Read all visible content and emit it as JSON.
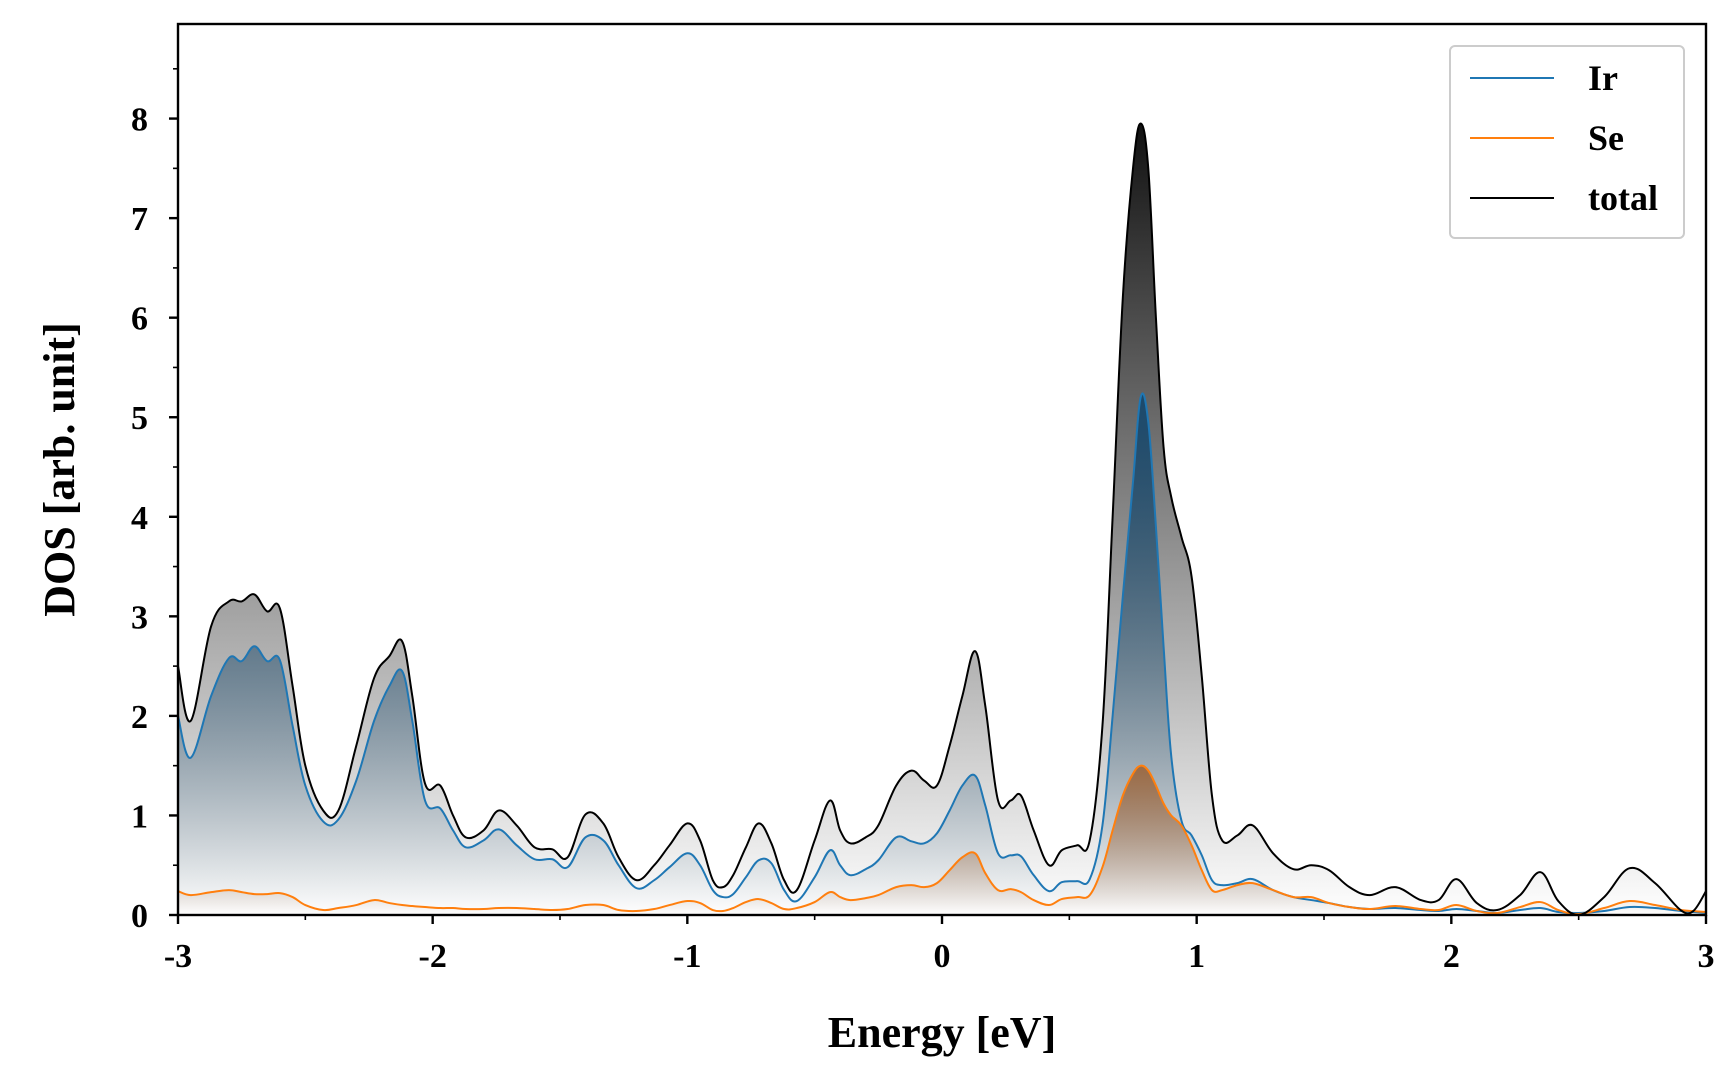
{
  "chart_data": {
    "type": "area",
    "xlabel": "Energy [eV]",
    "ylabel": "DOS [arb. unit]",
    "xlim": [
      -3,
      3
    ],
    "ylim": [
      0,
      8.95
    ],
    "x_ticks": [
      -3,
      -2,
      -1,
      0,
      1,
      2,
      3
    ],
    "x_tick_labels": [
      "-3",
      "-2",
      "-1",
      "0",
      "1",
      "2",
      "3"
    ],
    "y_ticks": [
      0,
      1,
      2,
      3,
      4,
      5,
      6,
      7,
      8
    ],
    "y_tick_labels": [
      "0",
      "1",
      "2",
      "3",
      "4",
      "5",
      "6",
      "7",
      "8"
    ],
    "grid": false,
    "legend_position": "top-right",
    "x": [
      -3.0,
      -2.95,
      -2.87,
      -2.8,
      -2.75,
      -2.7,
      -2.65,
      -2.6,
      -2.55,
      -2.5,
      -2.43,
      -2.37,
      -2.3,
      -2.23,
      -2.17,
      -2.12,
      -2.08,
      -2.03,
      -1.97,
      -1.92,
      -1.87,
      -1.8,
      -1.74,
      -1.67,
      -1.6,
      -1.53,
      -1.47,
      -1.4,
      -1.33,
      -1.27,
      -1.2,
      -1.13,
      -1.07,
      -1.0,
      -0.95,
      -0.9,
      -0.86,
      -0.82,
      -0.77,
      -0.72,
      -0.67,
      -0.62,
      -0.57,
      -0.5,
      -0.44,
      -0.4,
      -0.36,
      -0.3,
      -0.25,
      -0.18,
      -0.12,
      -0.07,
      -0.02,
      0.03,
      0.08,
      0.13,
      0.17,
      0.22,
      0.27,
      0.31,
      0.36,
      0.42,
      0.47,
      0.53,
      0.58,
      0.63,
      0.67,
      0.71,
      0.75,
      0.78,
      0.81,
      0.84,
      0.87,
      0.9,
      0.94,
      0.98,
      1.02,
      1.06,
      1.1,
      1.16,
      1.22,
      1.3,
      1.38,
      1.45,
      1.52,
      1.6,
      1.68,
      1.78,
      1.88,
      1.95,
      2.02,
      2.1,
      2.18,
      2.27,
      2.35,
      2.42,
      2.5,
      2.6,
      2.7,
      2.8,
      2.9,
      2.95,
      3.0
    ],
    "series": [
      {
        "name": "Ir",
        "color": "#1f77b4",
        "fill": "#1c4a6c",
        "values": [
          2.0,
          1.58,
          2.2,
          2.58,
          2.55,
          2.7,
          2.55,
          2.56,
          1.9,
          1.3,
          0.94,
          0.96,
          1.35,
          1.95,
          2.3,
          2.45,
          1.95,
          1.15,
          1.07,
          0.85,
          0.68,
          0.75,
          0.86,
          0.7,
          0.56,
          0.56,
          0.48,
          0.78,
          0.75,
          0.5,
          0.27,
          0.35,
          0.48,
          0.62,
          0.5,
          0.25,
          0.18,
          0.21,
          0.38,
          0.55,
          0.52,
          0.25,
          0.14,
          0.38,
          0.65,
          0.5,
          0.4,
          0.46,
          0.55,
          0.78,
          0.74,
          0.72,
          0.82,
          1.05,
          1.3,
          1.4,
          1.1,
          0.62,
          0.6,
          0.59,
          0.4,
          0.24,
          0.33,
          0.34,
          0.36,
          0.9,
          2.0,
          3.2,
          4.35,
          5.2,
          4.95,
          3.9,
          2.7,
          1.6,
          0.95,
          0.8,
          0.6,
          0.35,
          0.3,
          0.32,
          0.36,
          0.25,
          0.18,
          0.15,
          0.12,
          0.08,
          0.06,
          0.07,
          0.05,
          0.04,
          0.06,
          0.04,
          0.02,
          0.05,
          0.07,
          0.03,
          0.02,
          0.04,
          0.08,
          0.07,
          0.04,
          0.03,
          0.02
        ]
      },
      {
        "name": "Se",
        "color": "#ff7f0e",
        "fill": "#9c6b45",
        "values": [
          0.24,
          0.2,
          0.23,
          0.25,
          0.23,
          0.21,
          0.21,
          0.22,
          0.18,
          0.1,
          0.05,
          0.07,
          0.1,
          0.15,
          0.12,
          0.1,
          0.09,
          0.08,
          0.07,
          0.07,
          0.06,
          0.06,
          0.07,
          0.07,
          0.06,
          0.05,
          0.06,
          0.1,
          0.1,
          0.05,
          0.04,
          0.06,
          0.1,
          0.14,
          0.12,
          0.05,
          0.04,
          0.07,
          0.13,
          0.16,
          0.12,
          0.06,
          0.07,
          0.13,
          0.23,
          0.18,
          0.15,
          0.17,
          0.2,
          0.28,
          0.3,
          0.28,
          0.32,
          0.45,
          0.58,
          0.62,
          0.42,
          0.25,
          0.26,
          0.23,
          0.15,
          0.1,
          0.16,
          0.18,
          0.2,
          0.48,
          0.85,
          1.2,
          1.42,
          1.5,
          1.45,
          1.3,
          1.12,
          1.0,
          0.9,
          0.7,
          0.45,
          0.25,
          0.25,
          0.3,
          0.32,
          0.25,
          0.18,
          0.18,
          0.12,
          0.08,
          0.06,
          0.09,
          0.06,
          0.05,
          0.1,
          0.04,
          0.02,
          0.08,
          0.13,
          0.05,
          0.01,
          0.07,
          0.14,
          0.1,
          0.05,
          0.04,
          0.03
        ]
      },
      {
        "name": "total",
        "color": "#000000",
        "fill": "#111111",
        "values": [
          2.5,
          1.95,
          2.9,
          3.15,
          3.15,
          3.22,
          3.05,
          3.08,
          2.3,
          1.5,
          1.05,
          1.05,
          1.7,
          2.38,
          2.6,
          2.75,
          2.2,
          1.32,
          1.3,
          1.0,
          0.78,
          0.85,
          1.05,
          0.9,
          0.68,
          0.66,
          0.58,
          1.01,
          0.92,
          0.58,
          0.35,
          0.5,
          0.7,
          0.92,
          0.75,
          0.35,
          0.28,
          0.4,
          0.68,
          0.92,
          0.72,
          0.35,
          0.25,
          0.75,
          1.15,
          0.85,
          0.72,
          0.78,
          0.9,
          1.3,
          1.45,
          1.35,
          1.3,
          1.7,
          2.2,
          2.65,
          2.1,
          1.15,
          1.15,
          1.2,
          0.85,
          0.5,
          0.65,
          0.7,
          0.75,
          1.9,
          4.0,
          6.2,
          7.5,
          7.95,
          7.5,
          6.0,
          4.7,
          4.2,
          3.8,
          3.4,
          2.4,
          1.2,
          0.75,
          0.8,
          0.9,
          0.62,
          0.46,
          0.5,
          0.45,
          0.28,
          0.2,
          0.28,
          0.15,
          0.15,
          0.36,
          0.12,
          0.05,
          0.2,
          0.43,
          0.14,
          0.0,
          0.18,
          0.47,
          0.32,
          0.05,
          0.04,
          0.24
        ]
      }
    ]
  }
}
